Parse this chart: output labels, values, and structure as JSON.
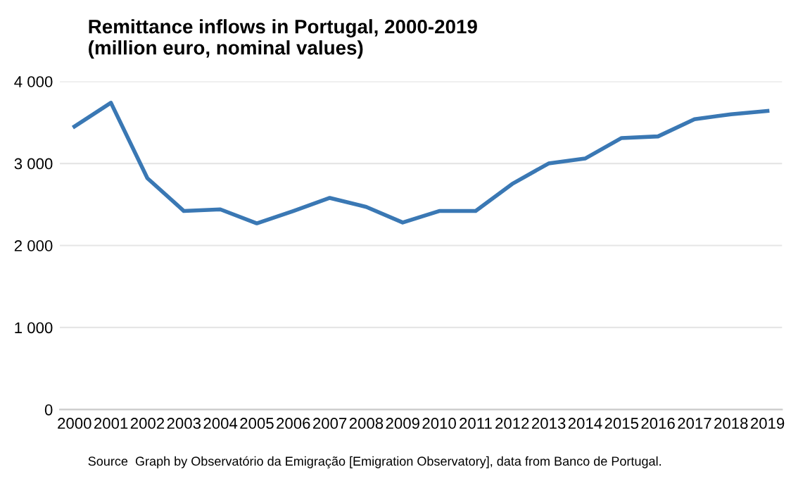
{
  "chart_data": {
    "type": "line",
    "title": "Remittance inflows in Portugal, 2000-2019\n(million euro, nominal values)",
    "categories": [
      "2000",
      "2001",
      "2002",
      "2003",
      "2004",
      "2005",
      "2006",
      "2007",
      "2008",
      "2009",
      "2010",
      "2011",
      "2012",
      "2013",
      "2014",
      "2015",
      "2016",
      "2017",
      "2018",
      "2019"
    ],
    "series": [
      {
        "color": "#3a78b4",
        "values": [
          3450,
          3740,
          2820,
          2420,
          2440,
          2270,
          2420,
          2580,
          2470,
          2280,
          2420,
          2420,
          2750,
          3000,
          3060,
          3310,
          3330,
          3540,
          3600,
          3640
        ]
      }
    ],
    "ylim": [
      0,
      4000
    ],
    "yticks": [
      {
        "value": 0,
        "label": "0"
      },
      {
        "value": 1000,
        "label": "1 000"
      },
      {
        "value": 2000,
        "label": "2 000"
      },
      {
        "value": 3000,
        "label": "3 000"
      },
      {
        "value": 4000,
        "label": "4 000"
      }
    ],
    "grid": "y",
    "marker": "none",
    "line_style": "solid",
    "annotations": [
      "Source  Graph by Observatório da Emigração [Emigration Observatory], data from Banco de Portugal."
    ]
  }
}
